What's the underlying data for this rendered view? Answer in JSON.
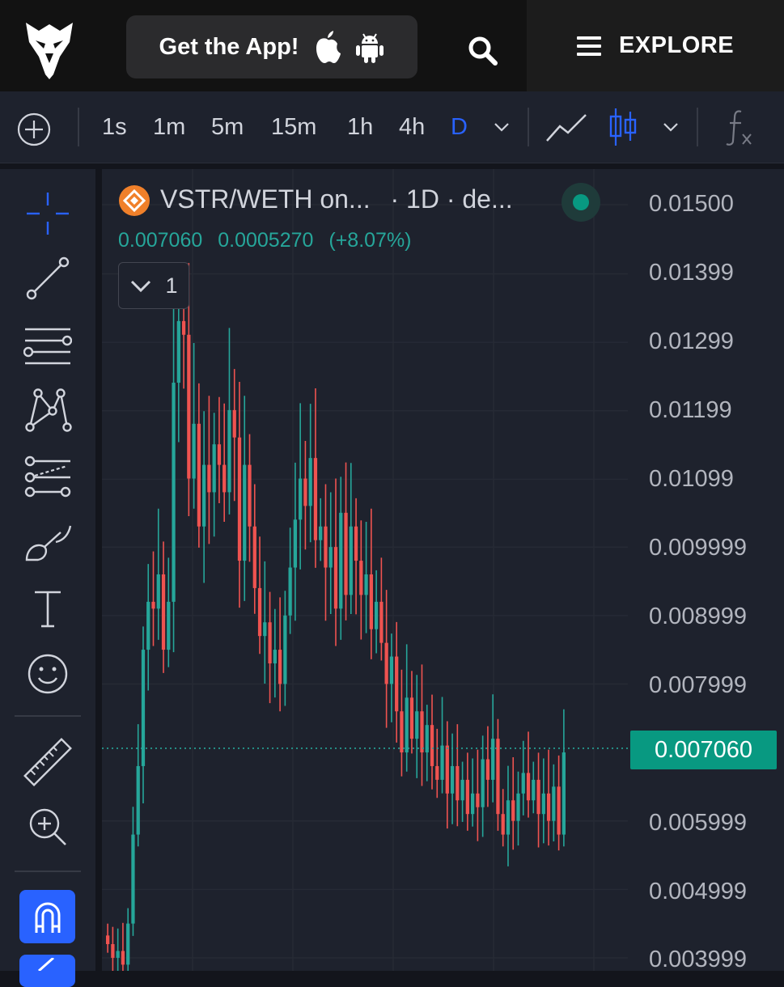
{
  "header": {
    "get_app_label": "Get the App!",
    "explore_label": "EXPLORE",
    "icons": [
      "eagle-logo-icon",
      "apple-icon",
      "android-icon",
      "search-icon",
      "menu-icon"
    ]
  },
  "toolbar": {
    "intervals": [
      "1s",
      "1m",
      "5m",
      "15m",
      "1h",
      "4h",
      "D"
    ],
    "active_interval": "D",
    "accent": "#2962ff"
  },
  "legend": {
    "title": "VSTR/WETH on...",
    "interval": "· 1D · de...",
    "last_price": "0.007060",
    "change": "0.0005270",
    "change_pct": "(+8.07%)",
    "collapse_count": "1",
    "status_color": "#089981"
  },
  "price_axis": {
    "labels": [
      "0.01500",
      "0.01399",
      "0.01299",
      "0.01199",
      "0.01099",
      "0.009999",
      "0.008999",
      "0.007999",
      "0.005999",
      "0.004999",
      "0.003999"
    ],
    "current": "0.007060"
  },
  "colors": {
    "up": "#26a69a",
    "down": "#ef5350",
    "background": "#1e222d"
  },
  "chart_data": {
    "type": "candlestick",
    "ylim": [
      0.0039,
      0.0152
    ],
    "y_ticks": [
      0.015,
      0.01399,
      0.01299,
      0.01199,
      0.01099,
      0.009999,
      0.008999,
      0.007999,
      0.005999,
      0.004999,
      0.003999
    ],
    "last_price": 0.00706,
    "grid": true,
    "closes": [
      0.0042,
      0.004,
      0.0041,
      0.0039,
      0.0045,
      0.0058,
      0.0068,
      0.0085,
      0.0092,
      0.0091,
      0.0096,
      0.0085,
      0.0092,
      0.0124,
      0.0133,
      0.0131,
      0.011,
      0.0118,
      0.0103,
      0.0112,
      0.0108,
      0.0115,
      0.0112,
      0.0108,
      0.012,
      0.0116,
      0.0098,
      0.0112,
      0.0103,
      0.0094,
      0.0087,
      0.0089,
      0.0083,
      0.0085,
      0.008,
      0.009,
      0.0097,
      0.0104,
      0.011,
      0.0106,
      0.0113,
      0.0101,
      0.0103,
      0.0097,
      0.01,
      0.0091,
      0.0105,
      0.0093,
      0.0103,
      0.0098,
      0.0093,
      0.0096,
      0.0088,
      0.0092,
      0.0086,
      0.008,
      0.0084,
      0.0076,
      0.007,
      0.0078,
      0.0072,
      0.0076,
      0.007,
      0.0074,
      0.0068,
      0.0066,
      0.0071,
      0.0064,
      0.0068,
      0.0063,
      0.0066,
      0.0061,
      0.0064,
      0.0062,
      0.0069,
      0.0066,
      0.0072,
      0.0061,
      0.0058,
      0.0063,
      0.006,
      0.0064,
      0.0067,
      0.0063,
      0.0066,
      0.0061,
      0.0064,
      0.006,
      0.0065,
      0.0058,
      0.007
    ]
  }
}
